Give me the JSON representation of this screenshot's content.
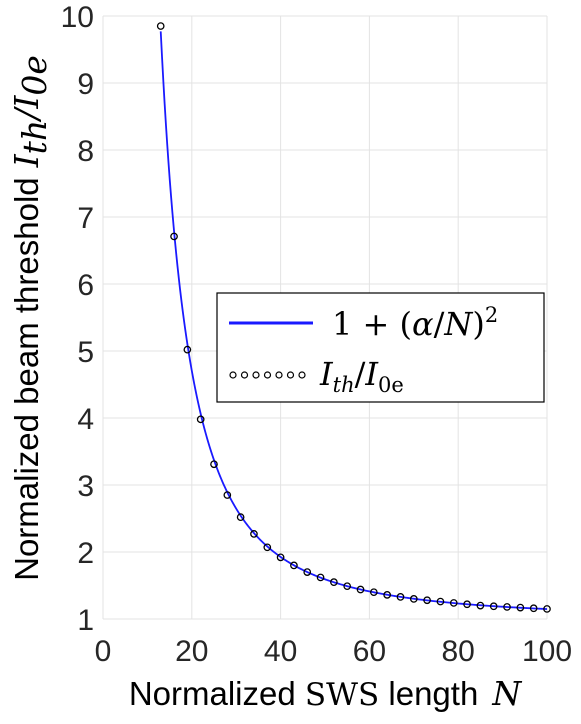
{
  "chart_data": {
    "type": "line",
    "title": "",
    "xlabel": {
      "prefix": "Normalized ",
      "serif_part": "SWS",
      "middle": " length",
      "symbol": "N"
    },
    "ylabel": {
      "prefix": "Normalized beam threshold",
      "symbol": "I_th/I_0e",
      "symbol_parts": [
        "I",
        "th",
        "/I",
        "0e"
      ]
    },
    "xlim": [
      0,
      100
    ],
    "ylim": [
      1,
      10
    ],
    "xticks": [
      0,
      20,
      40,
      60,
      80,
      100
    ],
    "yticks": [
      1,
      2,
      3,
      4,
      5,
      6,
      7,
      8,
      9,
      10
    ],
    "grid": true,
    "legend_position": "center-right",
    "series": [
      {
        "name": "1 + (α/N)^2",
        "kind": "line",
        "color": "#1a1aff",
        "formula_alpha": 38.5,
        "x_range": [
          13,
          100
        ]
      },
      {
        "name": "I_th/I_0e",
        "kind": "markers",
        "color": "#000000",
        "x": [
          13,
          16,
          19,
          22,
          25,
          28,
          31,
          34,
          37,
          40,
          43,
          46,
          49,
          52,
          55,
          58,
          61,
          64,
          67,
          70,
          73,
          76,
          79,
          82,
          85,
          88,
          91,
          94,
          97,
          100
        ],
        "y": [
          9.85,
          6.71,
          5.02,
          3.98,
          3.31,
          2.85,
          2.52,
          2.27,
          2.07,
          1.92,
          1.8,
          1.7,
          1.62,
          1.55,
          1.49,
          1.44,
          1.4,
          1.36,
          1.33,
          1.3,
          1.28,
          1.26,
          1.24,
          1.22,
          1.2,
          1.19,
          1.18,
          1.17,
          1.16,
          1.15
        ]
      }
    ]
  },
  "legend": {
    "line_entry": [
      "1 + (",
      "α",
      "/",
      "N",
      ")",
      "2"
    ],
    "marker_entry": [
      "I",
      "th",
      "/",
      "I",
      "0e"
    ]
  }
}
